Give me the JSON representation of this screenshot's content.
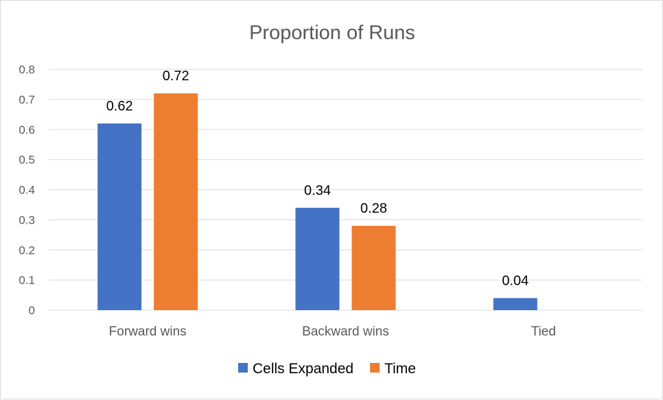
{
  "chart_data": {
    "type": "bar",
    "title": "Proportion of Runs",
    "xlabel": "",
    "ylabel": "",
    "categories": [
      "Forward wins",
      "Backward wins",
      "Tied"
    ],
    "series": [
      {
        "name": "Cells Expanded",
        "color": "#4472c4",
        "values": [
          0.62,
          0.34,
          0.04
        ],
        "labels": [
          "0.62",
          "0.34",
          "0.04"
        ]
      },
      {
        "name": "Time",
        "color": "#ed7d31",
        "values": [
          0.72,
          0.28,
          null
        ],
        "labels": [
          "0.72",
          "0.28",
          null
        ]
      }
    ],
    "ylim": [
      0,
      0.8
    ],
    "yticks": [
      0,
      0.1,
      0.2,
      0.3,
      0.4,
      0.5,
      0.6,
      0.7,
      0.8
    ],
    "ytick_labels": [
      "0",
      "0.1",
      "0.2",
      "0.3",
      "0.4",
      "0.5",
      "0.6",
      "0.7",
      "0.8"
    ],
    "grid": true,
    "legend_position": "bottom"
  }
}
